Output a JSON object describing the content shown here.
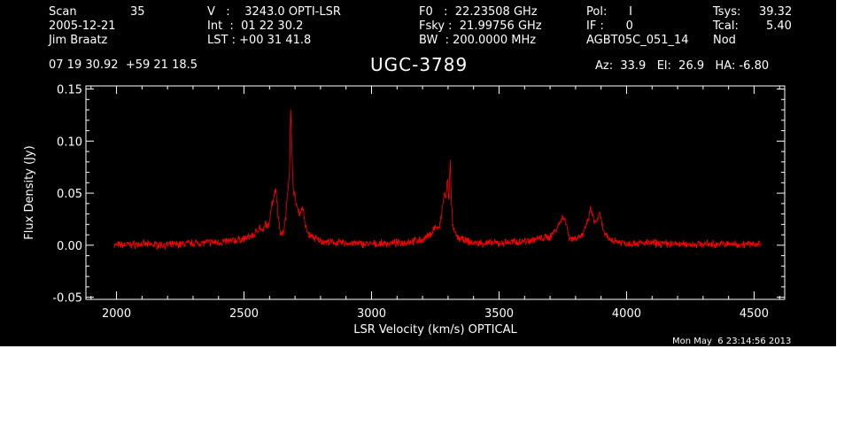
{
  "header": {
    "col1": {
      "scan_label": "Scan",
      "scan_value": "35",
      "date": "2005-12-21",
      "observer": "Jim Braatz"
    },
    "col2": {
      "velocity": "V   :    3243.0 OPTI-LSR",
      "integration": "Int  :  01 22 30.2",
      "lst": "LST : +00 31 41.8"
    },
    "col3": {
      "f0": "F0   :  22.23508 GHz",
      "fsky": "Fsky :  21.99756 GHz",
      "bw": "BW  : 200.0000 MHz"
    },
    "col4": {
      "pol": "Pol:      I",
      "if": "IF :      0",
      "project": "AGBT05C_051_14"
    },
    "col5": {
      "tsys_label": "Tsys:",
      "tsys_value": "39.32",
      "tcal_label": "Tcal:",
      "tcal_value": "5.40",
      "mode": "Nod"
    },
    "coords": "07 19 30.92  +59 21 18.5",
    "source": "UGC-3789",
    "pointing": "Az:  33.9   El:  26.9   HA: -6.80",
    "timestamp": "Mon May  6 23:14:56 2013"
  },
  "chart_data": {
    "type": "line",
    "title": "UGC-3789",
    "xlabel": "LSR Velocity (km/s) OPTICAL",
    "ylabel": "Flux Density (Jy)",
    "xlim": [
      1880,
      4620
    ],
    "ylim": [
      -0.052,
      0.153
    ],
    "xticks": [
      2000,
      2500,
      3000,
      3500,
      4000,
      4500
    ],
    "yticks": [
      -0.05,
      0.0,
      0.05,
      0.1,
      0.15
    ],
    "xtick_labels": [
      "2000",
      "2500",
      "3000",
      "3500",
      "4000",
      "4500"
    ],
    "ytick_labels": [
      "-0.05",
      "0.00",
      "0.05",
      "0.10",
      "0.15"
    ],
    "grid": false,
    "colors": {
      "background": "#000000",
      "axes": "#ffffff",
      "series": "#ff0000"
    },
    "series": [
      {
        "x": [
          1990,
          2100,
          2200,
          2300,
          2400,
          2450,
          2500,
          2540,
          2560,
          2575,
          2585,
          2595,
          2605,
          2615,
          2625,
          2635,
          2645,
          2655,
          2665,
          2670,
          2678,
          2683,
          2688,
          2693,
          2700,
          2710,
          2720,
          2730,
          2740,
          2755,
          2770,
          2790,
          2820,
          2900,
          3000,
          3100,
          3200,
          3230,
          3250,
          3265,
          3275,
          3285,
          3292,
          3298,
          3303,
          3308,
          3313,
          3320,
          3335,
          3360,
          3400,
          3500,
          3600,
          3650,
          3700,
          3730,
          3745,
          3755,
          3765,
          3775,
          3790,
          3810,
          3830,
          3850,
          3860,
          3868,
          3875,
          3885,
          3895,
          3905,
          3915,
          3930,
          3960,
          4000,
          4100,
          4200,
          4300,
          4400,
          4500,
          4525
        ],
        "y": [
          0.0,
          0.001,
          0.0,
          0.002,
          0.003,
          0.004,
          0.006,
          0.01,
          0.018,
          0.012,
          0.022,
          0.015,
          0.035,
          0.045,
          0.055,
          0.025,
          0.01,
          0.012,
          0.03,
          0.05,
          0.07,
          0.13,
          0.09,
          0.055,
          0.045,
          0.035,
          0.03,
          0.038,
          0.018,
          0.01,
          0.008,
          0.005,
          0.003,
          0.002,
          0.001,
          0.002,
          0.005,
          0.01,
          0.018,
          0.015,
          0.03,
          0.05,
          0.045,
          0.065,
          0.04,
          0.085,
          0.04,
          0.015,
          0.008,
          0.005,
          0.002,
          0.002,
          0.004,
          0.006,
          0.008,
          0.018,
          0.025,
          0.028,
          0.018,
          0.008,
          0.006,
          0.008,
          0.01,
          0.025,
          0.035,
          0.028,
          0.02,
          0.025,
          0.03,
          0.018,
          0.01,
          0.006,
          0.004,
          0.002,
          0.002,
          0.001,
          0.001,
          0.001,
          0.001,
          0.002
        ]
      }
    ]
  }
}
